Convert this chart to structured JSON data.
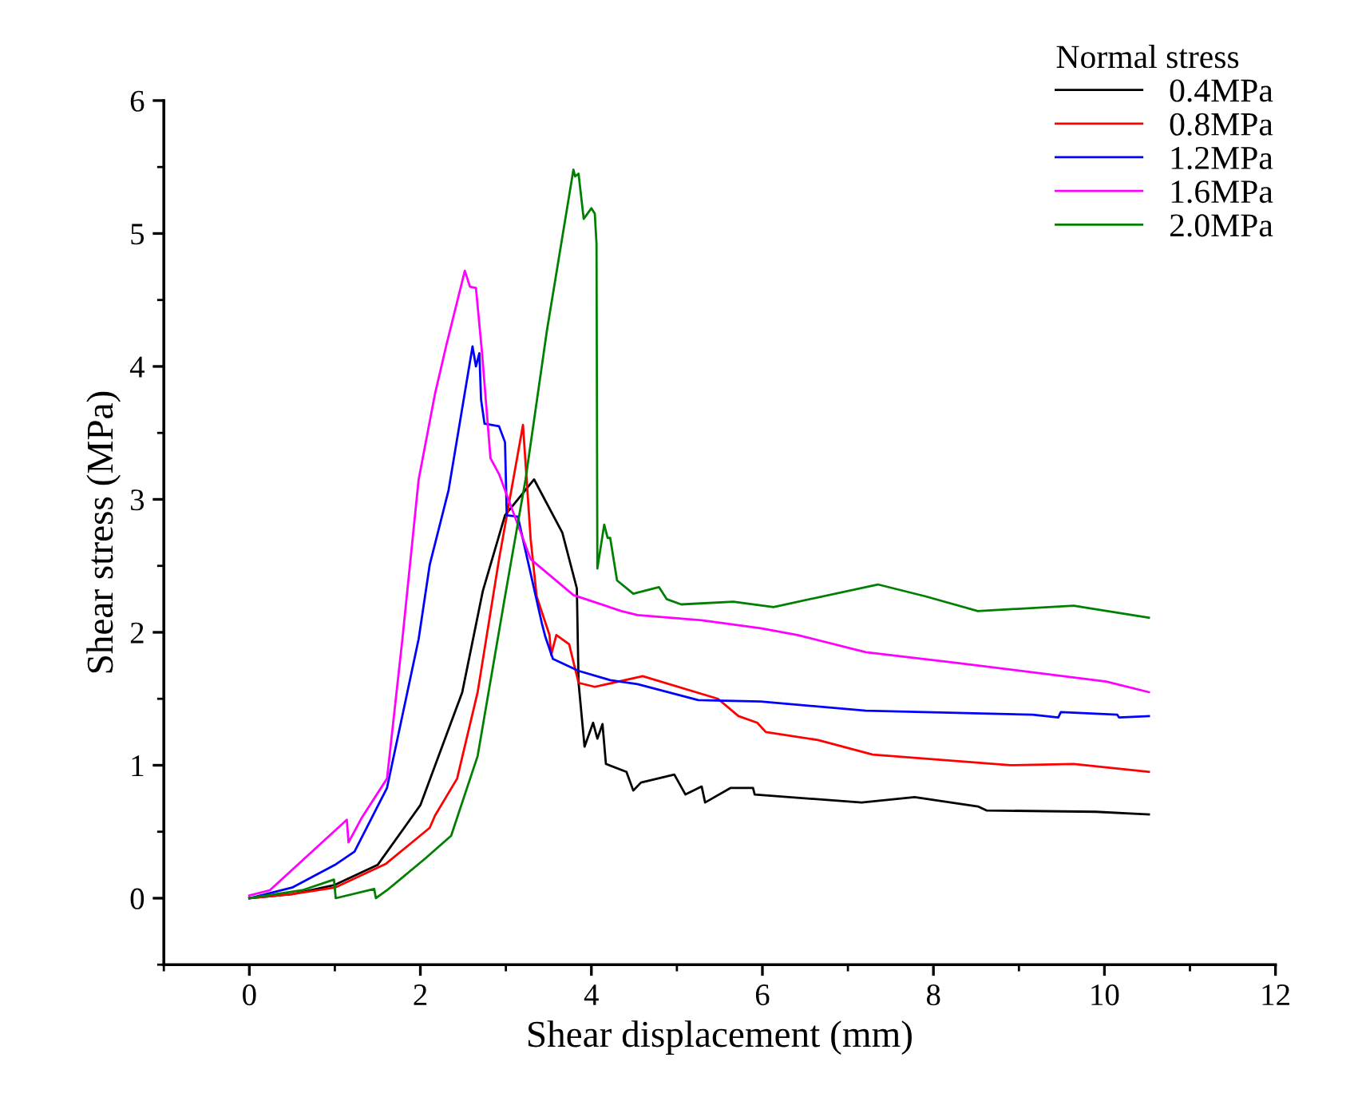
{
  "chart_data": {
    "type": "line",
    "xlabel": "Shear displacement (mm)",
    "ylabel": "Shear stress (MPa)",
    "legend_title": "Normal stress",
    "legend": "top right",
    "grid": false,
    "marker": "none",
    "line_style": "solid",
    "xlim": [
      -1,
      12
    ],
    "xticks": [
      0,
      2,
      4,
      6,
      8,
      10,
      12
    ],
    "ylim": [
      -0.5,
      6
    ],
    "yticks": [
      0,
      1,
      2,
      3,
      4,
      5,
      6
    ],
    "series": [
      {
        "name": "0.4MPa",
        "color": "#000000",
        "x": [
          0,
          0.5,
          1,
          1.5,
          2,
          2.49,
          2.73,
          2.99,
          3.33,
          3.66,
          3.83,
          3.85,
          3.92,
          4.02,
          4.07,
          4.13,
          4.17,
          4.41,
          4.49,
          4.58,
          4.97,
          5.1,
          5.29,
          5.33,
          5.63,
          5.89,
          5.91,
          7.16,
          7.78,
          8.52,
          8.62,
          9.9,
          10.52
        ],
        "values": [
          0,
          0.03,
          0.1,
          0.25,
          0.7,
          1.55,
          2.31,
          2.88,
          3.15,
          2.75,
          2.33,
          1.62,
          1.14,
          1.32,
          1.2,
          1.31,
          1.01,
          0.95,
          0.81,
          0.87,
          0.93,
          0.78,
          0.84,
          0.72,
          0.83,
          0.83,
          0.78,
          0.72,
          0.76,
          0.69,
          0.66,
          0.65,
          0.63
        ]
      },
      {
        "name": "0.8MPa",
        "color": "#ff0000",
        "x": [
          0,
          0.5,
          1,
          1.6,
          2.11,
          2.17,
          2.43,
          2.67,
          2.92,
          3.2,
          3.29,
          3.36,
          3.51,
          3.53,
          3.59,
          3.74,
          3.85,
          4.04,
          4.6,
          5.48,
          5.72,
          5.94,
          6.04,
          6.65,
          7.29,
          8.9,
          9.64,
          10.52
        ],
        "values": [
          0,
          0.03,
          0.08,
          0.26,
          0.53,
          0.62,
          0.9,
          1.55,
          2.55,
          3.56,
          2.7,
          2.27,
          1.98,
          1.83,
          1.98,
          1.91,
          1.62,
          1.59,
          1.67,
          1.5,
          1.37,
          1.32,
          1.25,
          1.19,
          1.08,
          1.0,
          1.01,
          0.95
        ]
      },
      {
        "name": "1.2MPa",
        "color": "#0000ff",
        "x": [
          0,
          0.5,
          1,
          1.23,
          1.61,
          1.98,
          2.11,
          2.33,
          2.61,
          2.65,
          2.69,
          2.71,
          2.75,
          2.92,
          2.99,
          3.01,
          3.14,
          3.42,
          3.46,
          3.55,
          3.85,
          4.22,
          4.54,
          5.25,
          5.98,
          7.21,
          9.16,
          9.46,
          9.49,
          10.15,
          10.17,
          10.52
        ],
        "values": [
          0,
          0.08,
          0.25,
          0.35,
          0.83,
          1.95,
          2.51,
          3.07,
          4.15,
          4.0,
          4.1,
          3.75,
          3.57,
          3.55,
          3.43,
          2.88,
          2.87,
          2.07,
          1.97,
          1.8,
          1.71,
          1.64,
          1.61,
          1.49,
          1.48,
          1.41,
          1.38,
          1.36,
          1.4,
          1.38,
          1.36,
          1.37
        ]
      },
      {
        "name": "1.6MPa",
        "color": "#ff00ff",
        "x": [
          0,
          0.24,
          1.14,
          1.16,
          1.31,
          1.61,
          1.79,
          1.98,
          2.17,
          2.3,
          2.52,
          2.58,
          2.65,
          2.72,
          2.82,
          2.92,
          3.29,
          3.79,
          4.35,
          4.54,
          5.29,
          5.98,
          6.41,
          7.21,
          8.28,
          10.02,
          10.52
        ],
        "values": [
          0.02,
          0.06,
          0.59,
          0.42,
          0.6,
          0.9,
          1.95,
          3.15,
          3.79,
          4.15,
          4.72,
          4.6,
          4.59,
          4.11,
          3.31,
          3.19,
          2.55,
          2.28,
          2.16,
          2.13,
          2.09,
          2.03,
          1.98,
          1.85,
          1.77,
          1.63,
          1.55
        ]
      },
      {
        "name": "2.0MPa",
        "color": "#008000",
        "x": [
          0,
          0.62,
          0.99,
          1.01,
          1.46,
          1.48,
          1.61,
          2.06,
          2.36,
          2.67,
          2.99,
          3.23,
          3.48,
          3.79,
          3.81,
          3.85,
          3.91,
          4.0,
          4.04,
          4.06,
          4.07,
          4.15,
          4.19,
          4.22,
          4.3,
          4.49,
          4.79,
          4.88,
          5.05,
          5.66,
          6.13,
          7.35,
          7.91,
          8.52,
          9.64,
          10.52
        ],
        "values": [
          0,
          0.06,
          0.14,
          0.0,
          0.07,
          0.0,
          0.06,
          0.3,
          0.47,
          1.07,
          2.27,
          3.15,
          4.27,
          5.48,
          5.43,
          5.45,
          5.11,
          5.19,
          5.15,
          4.92,
          2.48,
          2.81,
          2.71,
          2.71,
          2.39,
          2.29,
          2.34,
          2.25,
          2.21,
          2.23,
          2.19,
          2.36,
          2.27,
          2.16,
          2.2,
          2.11
        ]
      }
    ]
  }
}
